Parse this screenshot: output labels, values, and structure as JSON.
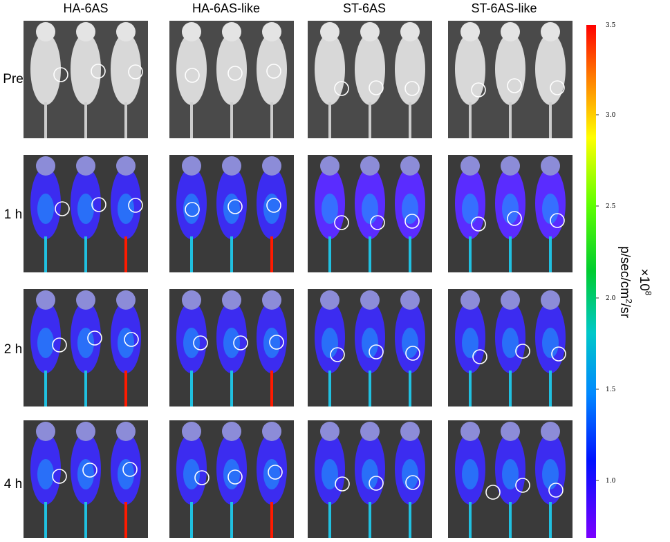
{
  "columns": [
    "HA-6AS",
    "HA-6AS-like",
    "ST-6AS",
    "ST-6AS-like"
  ],
  "rows": [
    "Pre",
    "1 h",
    "2 h",
    "4 h"
  ],
  "colorbar": {
    "max_label": "3.5",
    "ticks": [
      "3.0",
      "2.5",
      "2.0",
      "1.5",
      "1.0"
    ],
    "unit_multiplier": "×10",
    "unit_exponent": "8",
    "unit_prefix": "p/sec/cm",
    "unit_squared": "2",
    "unit_suffix": "/sr",
    "gradient_colors": [
      "#ff0000",
      "#ff8000",
      "#ffff00",
      "#80ff00",
      "#00d000",
      "#00c8c8",
      "#0080ff",
      "#0000ff",
      "#7a00ff"
    ]
  }
}
